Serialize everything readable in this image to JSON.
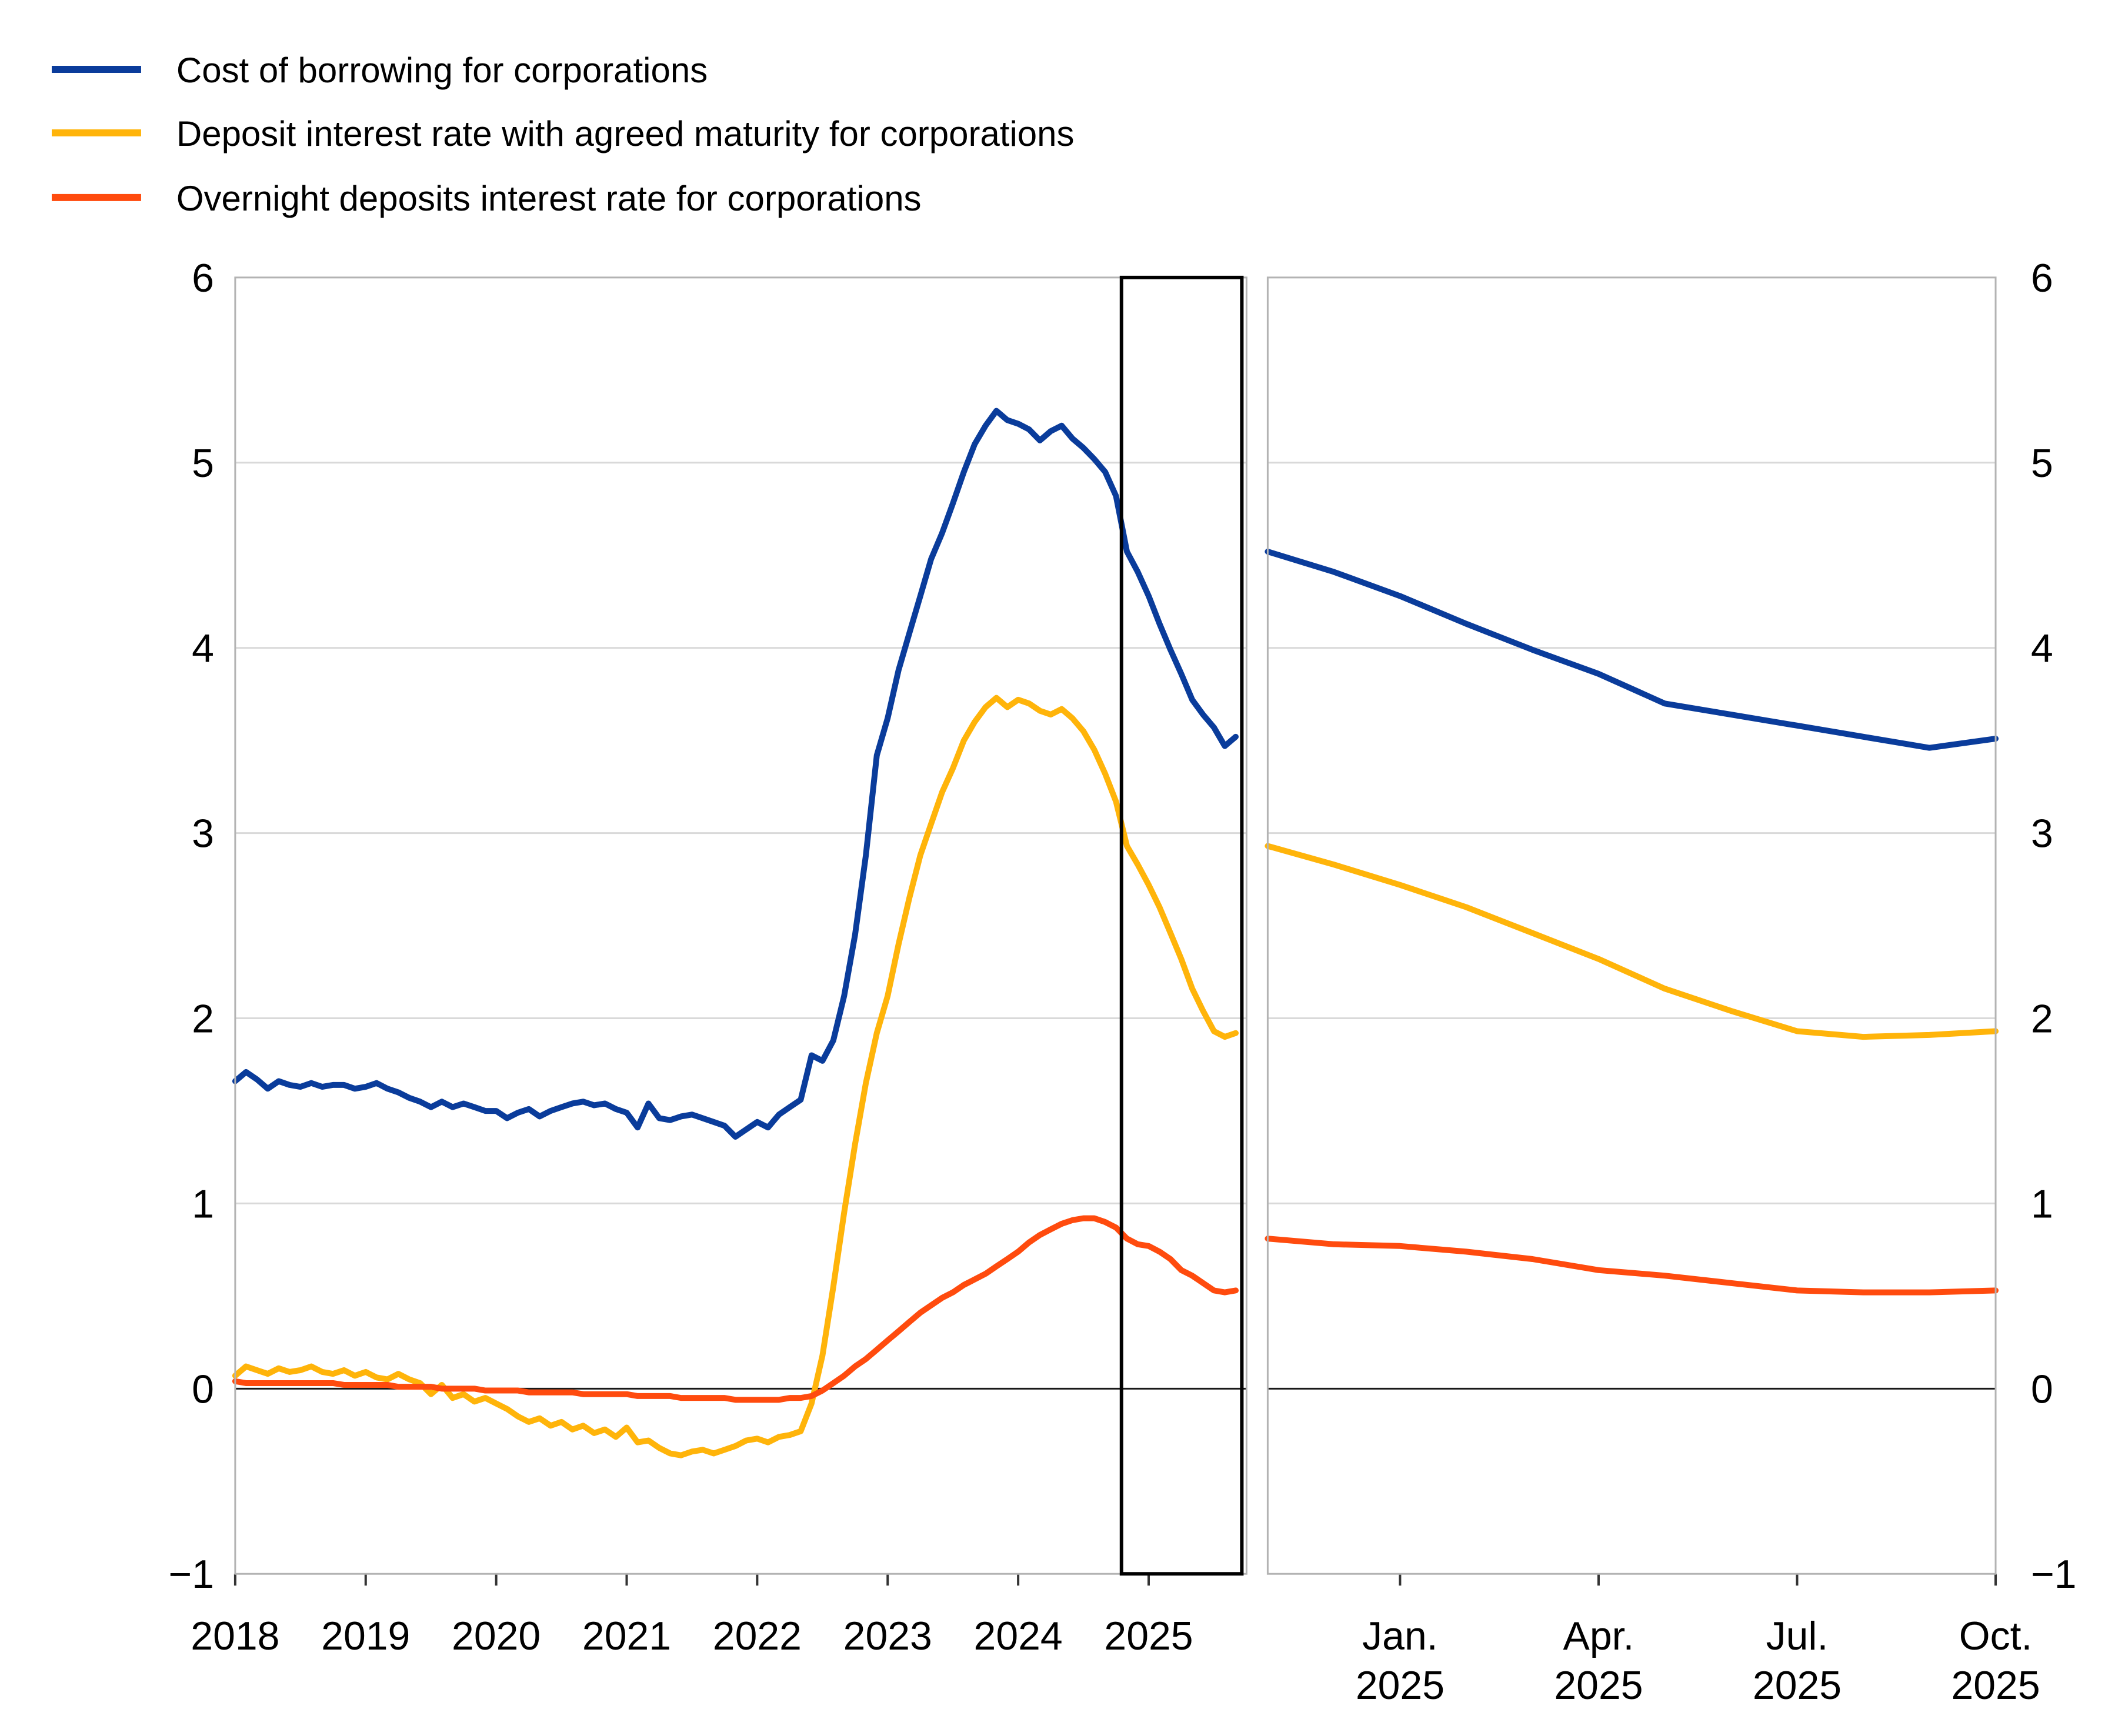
{
  "legend": {
    "items": [
      {
        "id": "cost-of-borrowing",
        "label": "Cost of borrowing for corporations",
        "color": "#0A3C9B"
      },
      {
        "id": "deposit-agreed-maturity",
        "label": "Deposit interest rate with agreed maturity for corporations",
        "color": "#FFB40A"
      },
      {
        "id": "overnight-deposits",
        "label": "Overnight deposits interest rate for corporations",
        "color": "#FF4B0E"
      }
    ]
  },
  "axis_colors": {
    "grid": "#D9D9D9",
    "zero_line": "#1A1A1A",
    "panel_border": "#B3B3B3",
    "tick": "#333333",
    "highlight_box": "#000000"
  },
  "chart_data": [
    {
      "type": "line",
      "panel": "left",
      "x_start": "Jan 2018",
      "x_end": "Sep 2025",
      "freq": "monthly",
      "x_domain_months": 93,
      "ylim": [
        -1,
        6
      ],
      "ytick_labels": [
        "−1",
        "0",
        "1",
        "2",
        "3",
        "4",
        "5",
        "6"
      ],
      "grid": "horizontal",
      "x_ticks": [
        {
          "month": 0,
          "label": "2018"
        },
        {
          "month": 12,
          "label": "2019"
        },
        {
          "month": 24,
          "label": "2020"
        },
        {
          "month": 36,
          "label": "2021"
        },
        {
          "month": 48,
          "label": "2022"
        },
        {
          "month": 60,
          "label": "2023"
        },
        {
          "month": 72,
          "label": "2024"
        },
        {
          "month": 84,
          "label": "2025"
        }
      ],
      "highlight_box": {
        "from_month": 81.5,
        "to_month": 93,
        "note": "period shown enlarged in right panel"
      },
      "series": [
        {
          "id": "cost-of-borrowing",
          "name": "Cost of borrowing for corporations",
          "color": "#0A3C9B",
          "values": [
            1.66,
            1.71,
            1.67,
            1.62,
            1.66,
            1.64,
            1.63,
            1.65,
            1.63,
            1.64,
            1.64,
            1.62,
            1.63,
            1.65,
            1.62,
            1.6,
            1.57,
            1.55,
            1.52,
            1.55,
            1.52,
            1.54,
            1.52,
            1.5,
            1.5,
            1.46,
            1.49,
            1.51,
            1.47,
            1.5,
            1.52,
            1.54,
            1.55,
            1.53,
            1.54,
            1.51,
            1.49,
            1.41,
            1.54,
            1.46,
            1.45,
            1.47,
            1.48,
            1.46,
            1.44,
            1.42,
            1.36,
            1.4,
            1.44,
            1.41,
            1.48,
            1.52,
            1.56,
            1.8,
            1.77,
            1.88,
            2.12,
            2.45,
            2.88,
            3.42,
            3.62,
            3.88,
            4.08,
            4.28,
            4.48,
            4.62,
            4.78,
            4.95,
            5.1,
            5.2,
            5.28,
            5.23,
            5.21,
            5.18,
            5.12,
            5.17,
            5.2,
            5.13,
            5.08,
            5.02,
            4.95,
            4.82,
            4.52,
            4.41,
            4.28,
            4.13,
            3.99,
            3.86,
            3.72,
            3.64,
            3.57,
            3.47,
            3.52
          ]
        },
        {
          "id": "deposit-agreed-maturity",
          "name": "Deposit interest rate with agreed maturity for corporations",
          "color": "#FFB40A",
          "values": [
            0.07,
            0.12,
            0.1,
            0.08,
            0.11,
            0.09,
            0.1,
            0.12,
            0.09,
            0.08,
            0.1,
            0.07,
            0.09,
            0.06,
            0.05,
            0.08,
            0.05,
            0.03,
            -0.03,
            0.02,
            -0.05,
            -0.03,
            -0.07,
            -0.05,
            -0.08,
            -0.11,
            -0.15,
            -0.18,
            -0.16,
            -0.2,
            -0.18,
            -0.22,
            -0.2,
            -0.24,
            -0.22,
            -0.26,
            -0.21,
            -0.29,
            -0.28,
            -0.32,
            -0.35,
            -0.36,
            -0.34,
            -0.33,
            -0.35,
            -0.33,
            -0.31,
            -0.28,
            -0.27,
            -0.29,
            -0.26,
            -0.25,
            -0.23,
            -0.08,
            0.18,
            0.55,
            0.95,
            1.32,
            1.65,
            1.92,
            2.12,
            2.4,
            2.65,
            2.88,
            3.05,
            3.22,
            3.35,
            3.5,
            3.6,
            3.68,
            3.73,
            3.68,
            3.72,
            3.7,
            3.66,
            3.64,
            3.67,
            3.62,
            3.55,
            3.45,
            3.32,
            3.17,
            2.93,
            2.83,
            2.72,
            2.6,
            2.46,
            2.32,
            2.16,
            2.04,
            1.93,
            1.9,
            1.92
          ]
        },
        {
          "id": "overnight-deposits",
          "name": "Overnight deposits interest rate for corporations",
          "color": "#FF4B0E",
          "values": [
            0.04,
            0.03,
            0.03,
            0.03,
            0.03,
            0.03,
            0.03,
            0.03,
            0.03,
            0.03,
            0.02,
            0.02,
            0.02,
            0.02,
            0.02,
            0.01,
            0.01,
            0.01,
            0.01,
            0.0,
            0.0,
            0.0,
            0.0,
            -0.01,
            -0.01,
            -0.01,
            -0.01,
            -0.02,
            -0.02,
            -0.02,
            -0.02,
            -0.02,
            -0.03,
            -0.03,
            -0.03,
            -0.03,
            -0.03,
            -0.04,
            -0.04,
            -0.04,
            -0.04,
            -0.05,
            -0.05,
            -0.05,
            -0.05,
            -0.05,
            -0.06,
            -0.06,
            -0.06,
            -0.06,
            -0.06,
            -0.05,
            -0.05,
            -0.04,
            -0.01,
            0.03,
            0.07,
            0.12,
            0.16,
            0.21,
            0.26,
            0.31,
            0.36,
            0.41,
            0.45,
            0.49,
            0.52,
            0.56,
            0.59,
            0.62,
            0.66,
            0.7,
            0.74,
            0.79,
            0.83,
            0.86,
            0.89,
            0.91,
            0.92,
            0.92,
            0.9,
            0.87,
            0.81,
            0.78,
            0.77,
            0.74,
            0.7,
            0.64,
            0.61,
            0.57,
            0.53,
            0.52,
            0.53
          ]
        }
      ]
    },
    {
      "type": "line",
      "panel": "right",
      "x_start": "Nov 2024",
      "x_end": "Oct 2025",
      "freq": "monthly",
      "n_points": 12,
      "ylim": [
        -1,
        6
      ],
      "ytick_labels": [
        "−1",
        "0",
        "1",
        "2",
        "3",
        "4",
        "5",
        "6"
      ],
      "grid": "horizontal",
      "x_ticks": [
        {
          "index": 2,
          "line1": "Jan.",
          "line2": "2025"
        },
        {
          "index": 5,
          "line1": "Apr.",
          "line2": "2025"
        },
        {
          "index": 8,
          "line1": "Jul.",
          "line2": "2025"
        },
        {
          "index": 11,
          "line1": "Oct.",
          "line2": "2025"
        }
      ],
      "series": [
        {
          "id": "cost-of-borrowing",
          "name": "Cost of borrowing for corporations",
          "color": "#0A3C9B",
          "values": [
            4.52,
            4.41,
            4.28,
            4.13,
            3.99,
            3.86,
            3.7,
            3.64,
            3.58,
            3.52,
            3.46,
            3.51
          ]
        },
        {
          "id": "deposit-agreed-maturity",
          "name": "Deposit interest rate with agreed maturity for corporations",
          "color": "#FFB40A",
          "values": [
            2.93,
            2.83,
            2.72,
            2.6,
            2.46,
            2.32,
            2.16,
            2.04,
            1.93,
            1.9,
            1.91,
            1.93
          ]
        },
        {
          "id": "overnight-deposits",
          "name": "Overnight deposits interest rate for corporations",
          "color": "#FF4B0E",
          "values": [
            0.81,
            0.78,
            0.77,
            0.74,
            0.7,
            0.64,
            0.61,
            0.57,
            0.53,
            0.52,
            0.52,
            0.53
          ]
        }
      ]
    }
  ]
}
